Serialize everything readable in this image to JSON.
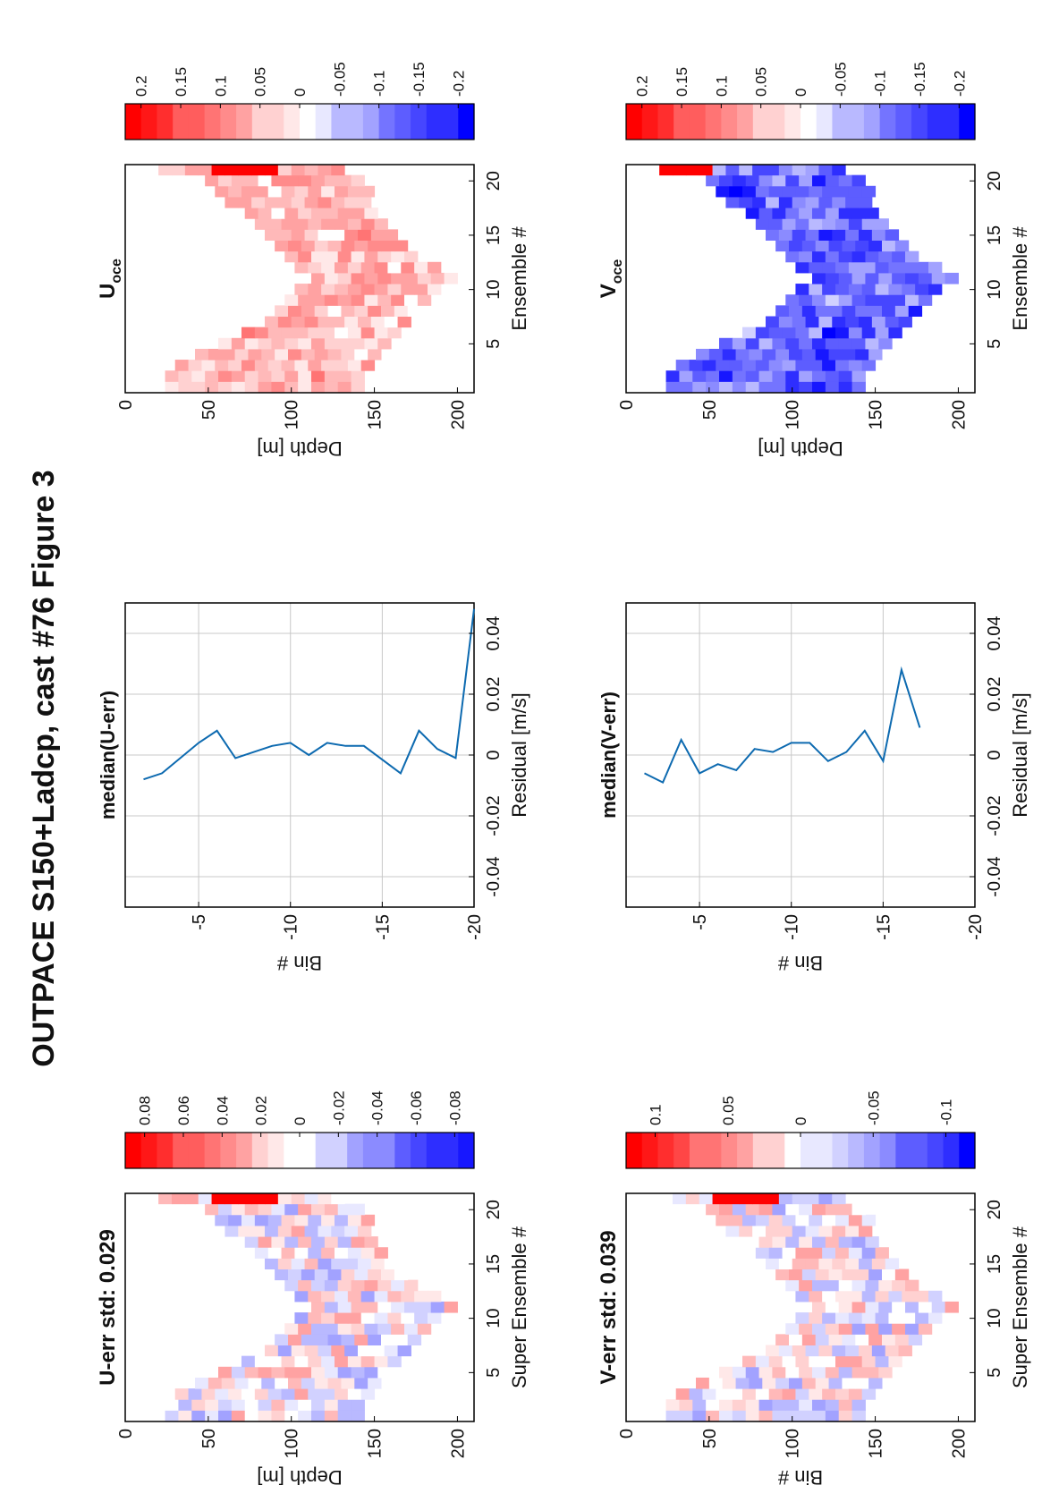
{
  "figure": {
    "title": "OUTPACE S150+Ladcp, cast #76  Figure 3"
  },
  "colors": {
    "red": "#ff0000",
    "blue": "#0000ff",
    "line": "#0d6ab0",
    "grid": "#c8c8c8"
  },
  "chart_data": [
    {
      "id": "u-err",
      "type": "heatmap",
      "title": "U-err std: 0.029",
      "xlabel": "Super Ensemble #",
      "ylabel": "Depth [m]",
      "xlim": [
        0.5,
        21.5
      ],
      "ylim": [
        0,
        210
      ],
      "xticks": [
        "5",
        "10",
        "15",
        "20"
      ],
      "yticks": [
        "0",
        "50",
        "100",
        "150",
        "200"
      ],
      "colorbar": {
        "clim": [
          -0.09,
          0.09
        ],
        "ticks": [
          "0.08",
          "0.06",
          "0.04",
          "0.02",
          "0",
          "-0.02",
          "-0.04",
          "-0.06",
          "-0.08"
        ]
      },
      "depth_profile": {
        "top": [
          24,
          24,
          30,
          42,
          56,
          70,
          84,
          90,
          96,
          102,
          112,
          102,
          96,
          90,
          84,
          78,
          72,
          60,
          54,
          48,
          20
        ],
        "bottom": [
          142,
          144,
          146,
          150,
          154,
          160,
          168,
          176,
          180,
          188,
          200,
          188,
          176,
          170,
          164,
          158,
          152,
          148,
          146,
          140,
          132
        ]
      },
      "bin_size_m": 8,
      "scale": 0.035,
      "seed": 7,
      "red_band_rows": [
        6,
        7,
        8,
        9,
        10
      ]
    },
    {
      "id": "u-res",
      "type": "line",
      "title": "median(U-err)",
      "xlabel": "Residual [m/s]",
      "ylabel": "Bin #",
      "xlim": [
        -0.05,
        0.05
      ],
      "ylim": [
        -20,
        -1
      ],
      "xticks": [
        "-0.04",
        "-0.02",
        "0",
        "0.02",
        "0.04"
      ],
      "yticks": [
        "-5",
        "-10",
        "-15",
        "-20"
      ],
      "series": [
        {
          "x": [
            -0.008,
            -0.006,
            0.004,
            0.008,
            -0.001,
            0.003,
            0.004,
            0.0,
            0.004,
            0.003,
            0.003,
            -0.006,
            0.008,
            0.002,
            -0.001,
            0.048
          ],
          "y": [
            -2,
            -3,
            -5,
            -6,
            -7,
            -9,
            -10,
            -11,
            -12,
            -13,
            -14,
            -16,
            -17,
            -18,
            -19,
            -20
          ]
        }
      ]
    },
    {
      "id": "u-oce",
      "type": "heatmap",
      "title": "U",
      "title_sub": "oce",
      "xlabel": "Ensemble #",
      "ylabel": "Depth [m]",
      "xlim": [
        0.5,
        21.5
      ],
      "ylim": [
        0,
        210
      ],
      "xticks": [
        "5",
        "10",
        "15",
        "20"
      ],
      "yticks": [
        "0",
        "50",
        "100",
        "150",
        "200"
      ],
      "colorbar": {
        "clim": [
          -0.22,
          0.22
        ],
        "ticks": [
          "0.2",
          "0.15",
          "0.1",
          "0.05",
          "0",
          "-0.05",
          "-0.1",
          "-0.15",
          "-0.2"
        ]
      },
      "depth_profile": {
        "top": [
          24,
          24,
          30,
          42,
          56,
          70,
          84,
          90,
          96,
          102,
          112,
          102,
          96,
          90,
          84,
          78,
          72,
          60,
          54,
          48,
          20
        ],
        "bottom": [
          142,
          144,
          146,
          150,
          154,
          160,
          168,
          176,
          180,
          188,
          200,
          188,
          176,
          170,
          164,
          158,
          152,
          148,
          146,
          140,
          132
        ]
      },
      "bin_size_m": 8,
      "bias": 0.06,
      "scale": 0.04,
      "seed": 21,
      "red_band_rows": [
        6,
        7,
        8,
        9,
        10
      ]
    },
    {
      "id": "v-err",
      "type": "heatmap",
      "title": "V-err std: 0.039",
      "xlabel": "Super Ensemble #",
      "ylabel": "Bin #",
      "xlim": [
        0.5,
        21.5
      ],
      "ylim": [
        0,
        210
      ],
      "xticks": [
        "5",
        "10",
        "15",
        "20"
      ],
      "yticks": [
        "0",
        "50",
        "100",
        "150",
        "200"
      ],
      "colorbar": {
        "clim": [
          -0.12,
          0.12
        ],
        "ticks": [
          "0.1",
          "0.05",
          "0",
          "-0.05",
          "-0.1"
        ]
      },
      "depth_profile": {
        "top": [
          24,
          24,
          30,
          42,
          56,
          70,
          84,
          90,
          96,
          102,
          112,
          102,
          96,
          90,
          84,
          78,
          72,
          60,
          54,
          48,
          20
        ],
        "bottom": [
          142,
          144,
          146,
          150,
          154,
          160,
          168,
          176,
          180,
          188,
          200,
          188,
          176,
          170,
          164,
          158,
          152,
          148,
          146,
          140,
          132
        ]
      },
      "bin_size_m": 8,
      "scale": 0.045,
      "seed": 43,
      "red_band_rows": [
        6,
        7,
        8,
        9,
        10
      ]
    },
    {
      "id": "v-res",
      "type": "line",
      "title": "median(V-err)",
      "xlabel": "Residual [m/s]",
      "ylabel": "Bin #",
      "xlim": [
        -0.05,
        0.05
      ],
      "ylim": [
        -20,
        -1
      ],
      "xticks": [
        "-0.04",
        "-0.02",
        "0",
        "0.02",
        "0.04"
      ],
      "yticks": [
        "-5",
        "-10",
        "-15",
        "-20"
      ],
      "series": [
        {
          "x": [
            -0.006,
            -0.009,
            0.005,
            -0.006,
            -0.003,
            -0.005,
            0.002,
            0.001,
            0.004,
            0.004,
            -0.002,
            0.001,
            0.008,
            -0.002,
            0.028,
            0.009
          ],
          "y": [
            -2,
            -3,
            -4,
            -5,
            -6,
            -7,
            -8,
            -9,
            -10,
            -11,
            -12,
            -13,
            -14,
            -15,
            -16,
            -17
          ]
        }
      ]
    },
    {
      "id": "v-oce",
      "type": "heatmap",
      "title": "V",
      "title_sub": "oce",
      "xlabel": "Ensemble #",
      "ylabel": "Depth [m]",
      "xlim": [
        0.5,
        21.5
      ],
      "ylim": [
        0,
        210
      ],
      "xticks": [
        "5",
        "10",
        "15",
        "20"
      ],
      "yticks": [
        "0",
        "50",
        "100",
        "150",
        "200"
      ],
      "colorbar": {
        "clim": [
          -0.22,
          0.22
        ],
        "ticks": [
          "0.2",
          "0.15",
          "0.1",
          "0.05",
          "0",
          "-0.05",
          "-0.1",
          "-0.15",
          "-0.2"
        ]
      },
      "depth_profile": {
        "top": [
          24,
          24,
          30,
          42,
          56,
          70,
          84,
          90,
          96,
          102,
          112,
          102,
          96,
          90,
          84,
          78,
          72,
          60,
          54,
          48,
          20
        ],
        "bottom": [
          142,
          144,
          146,
          150,
          154,
          160,
          168,
          176,
          180,
          188,
          200,
          188,
          176,
          170,
          164,
          158,
          152,
          148,
          146,
          140,
          132
        ]
      },
      "bin_size_m": 8,
      "bias": -0.13,
      "scale": 0.04,
      "seed": 77,
      "red_band_rows": [
        1,
        2,
        3,
        4,
        5
      ]
    }
  ]
}
